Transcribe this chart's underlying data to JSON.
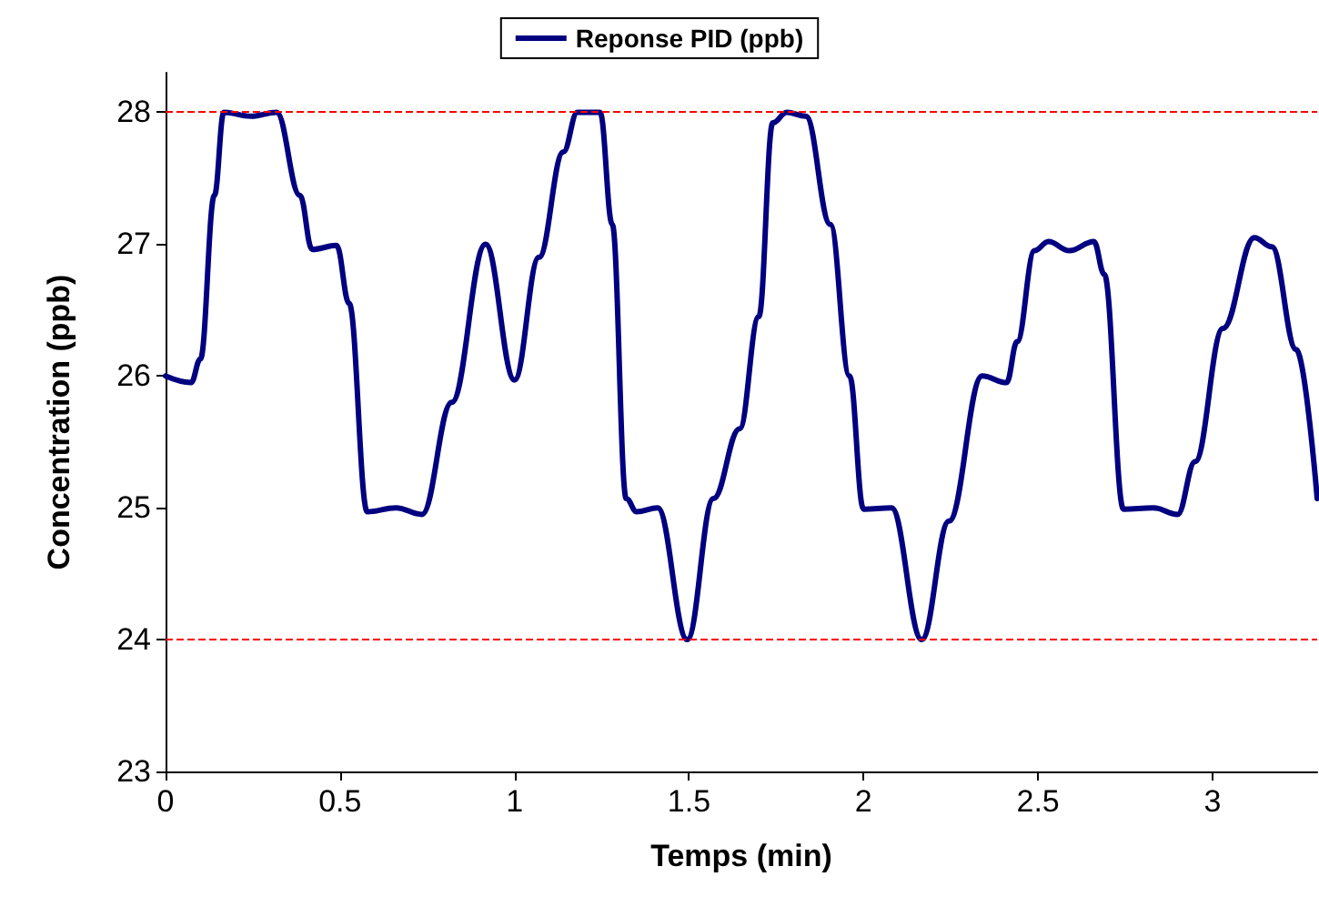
{
  "chart_data": {
    "type": "line",
    "xlabel": "Temps (min)",
    "ylabel": "Concentration (ppb)",
    "xlim": [
      0,
      3.3
    ],
    "xticks": [
      0,
      0.5,
      1,
      1.5,
      2,
      2.5,
      3
    ],
    "ylim": [
      23,
      28.3
    ],
    "yticks": [
      23,
      24,
      25,
      26,
      27,
      28
    ],
    "grid": false,
    "legend": "top",
    "marker": "none",
    "line_style": "solid",
    "series": [
      {
        "name": "Reponse PID (ppb)",
        "color": "#000080",
        "x": [
          0,
          0.073,
          0.1,
          0.14,
          0.167,
          0.245,
          0.318,
          0.385,
          0.42,
          0.49,
          0.526,
          0.578,
          0.66,
          0.735,
          0.82,
          0.917,
          1.0,
          1.07,
          1.14,
          1.18,
          1.245,
          1.28,
          1.32,
          1.35,
          1.41,
          1.495,
          1.57,
          1.645,
          1.7,
          1.74,
          1.78,
          1.835,
          1.905,
          1.96,
          2.0,
          2.08,
          2.167,
          2.245,
          2.34,
          2.41,
          2.44,
          2.49,
          2.53,
          2.59,
          2.66,
          2.69,
          2.745,
          2.83,
          2.9,
          2.95,
          3.03,
          3.12,
          3.17,
          3.24,
          3.3
        ],
        "values": [
          26.0,
          25.95,
          26.13,
          27.37,
          28.0,
          27.97,
          28.0,
          27.37,
          26.96,
          26.99,
          26.55,
          24.97,
          25.0,
          24.95,
          25.8,
          27.0,
          25.97,
          26.9,
          27.7,
          28.0,
          28.0,
          27.15,
          25.07,
          24.97,
          25.0,
          24.0,
          25.07,
          25.6,
          26.45,
          27.92,
          28.0,
          27.97,
          27.15,
          26.0,
          24.99,
          25.0,
          24.0,
          24.9,
          26.0,
          25.95,
          26.26,
          26.95,
          27.02,
          26.95,
          27.02,
          26.77,
          24.99,
          25.0,
          24.95,
          25.35,
          26.36,
          27.05,
          26.98,
          26.2,
          25.07
        ]
      }
    ],
    "ref_lines": [
      {
        "axis": "y",
        "value": 28,
        "color": "#ff0000",
        "line_style": "dashed"
      },
      {
        "axis": "y",
        "value": 24,
        "color": "#ff0000",
        "line_style": "dashed"
      }
    ]
  }
}
